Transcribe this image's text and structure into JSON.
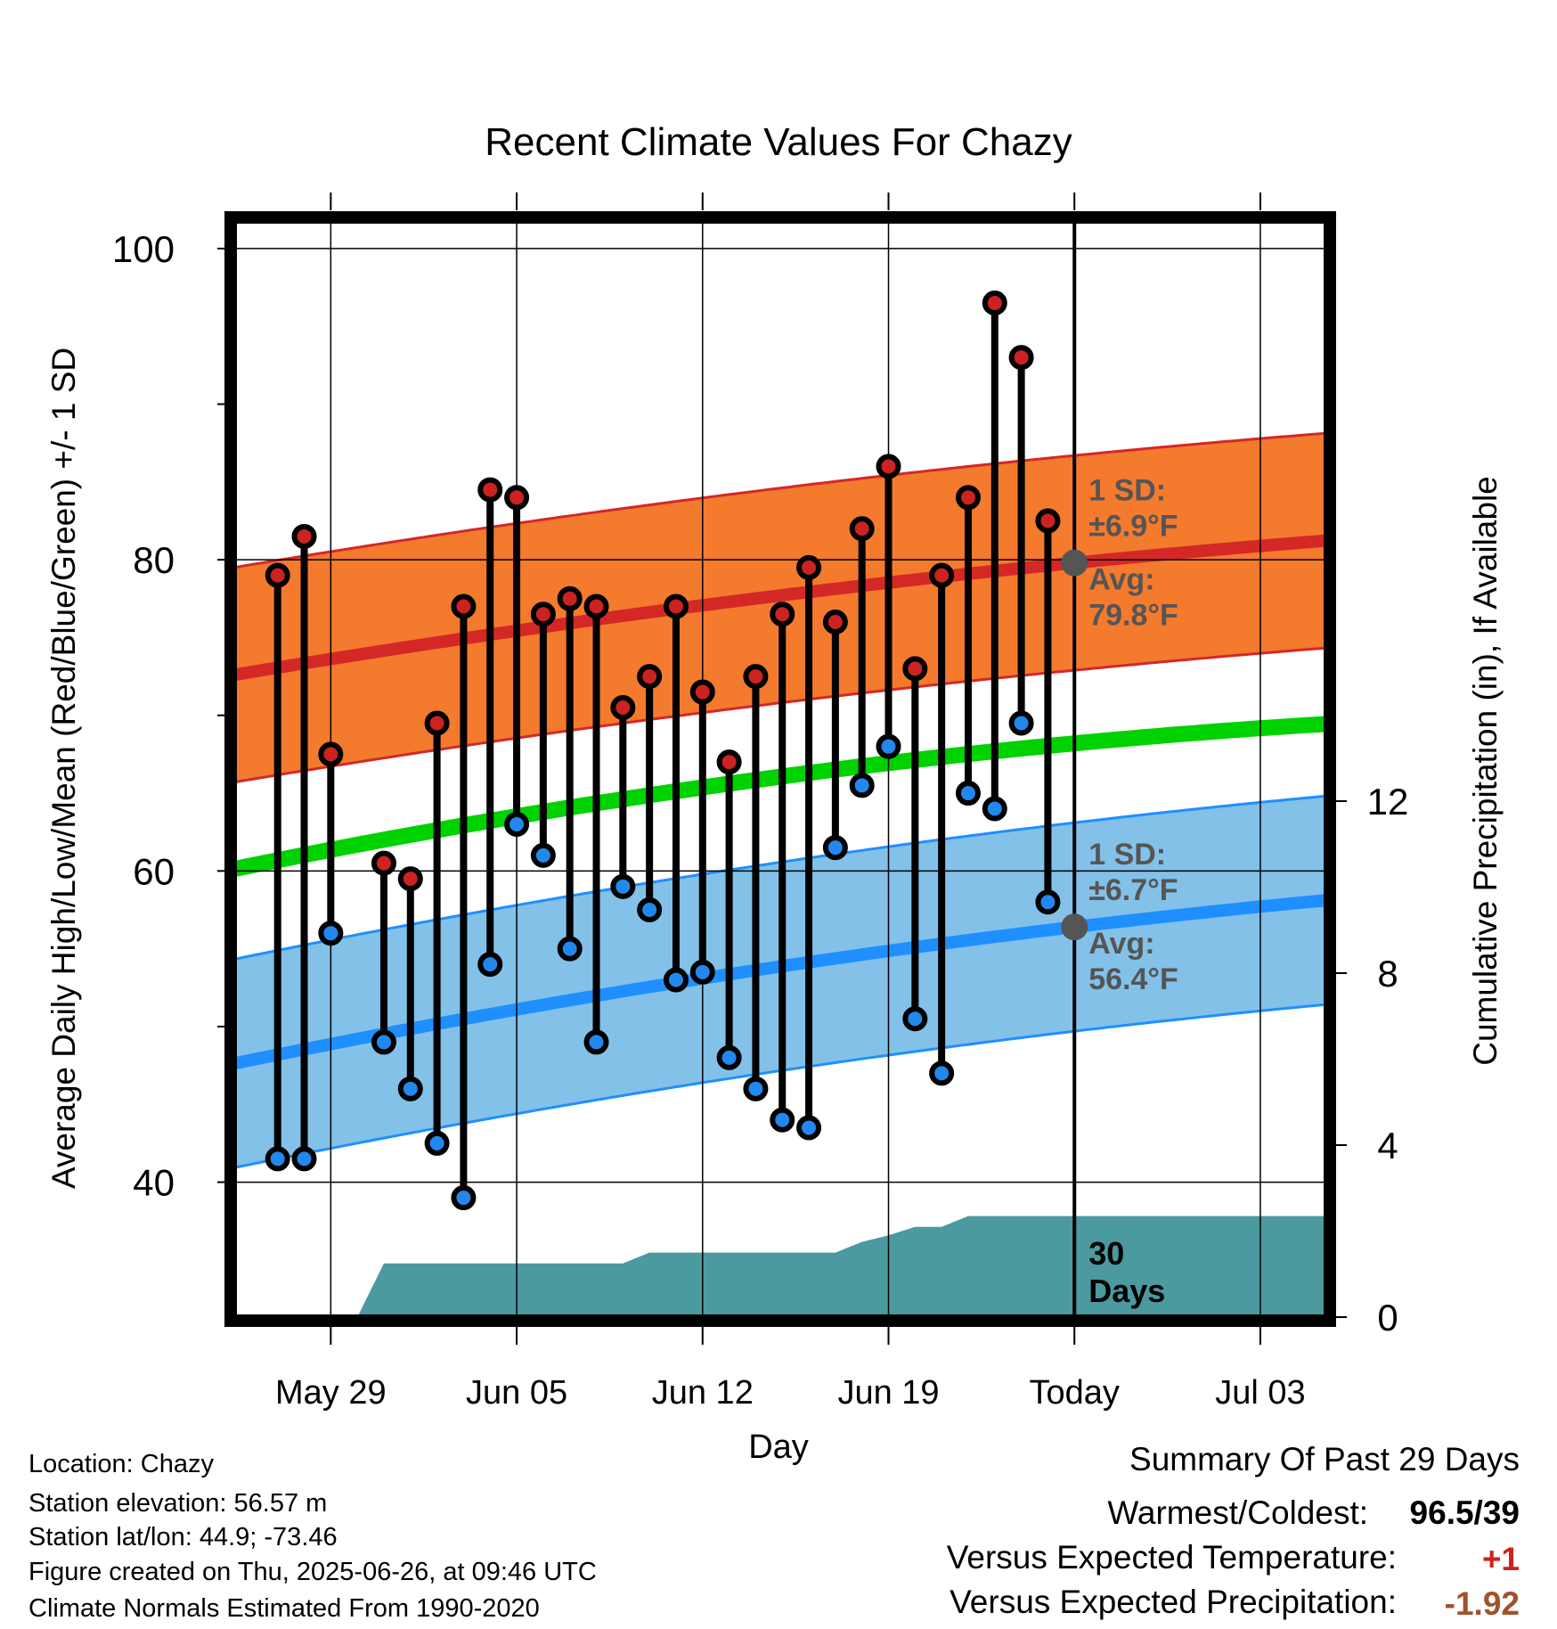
{
  "chart_data": {
    "type": "line",
    "title": "Recent Climate Values For Chazy",
    "xlabel": "Day",
    "ylabel_left": "Average Daily High/Low/Mean (Red/Blue/Green) +/- 1 SD",
    "ylabel_right": "Cumulative Precipitation (in), If Available",
    "ylim": [
      31.5,
      102
    ],
    "ylim_right": [
      0,
      25
    ],
    "y_ticks": [
      40,
      60,
      80,
      100
    ],
    "y_minor_ticks": [
      50,
      70,
      90
    ],
    "y_right_ticks": [
      0,
      4,
      8,
      12
    ],
    "x_range": [
      "2025-05-25",
      "2025-07-06"
    ],
    "x_ticks": [
      {
        "date": "2025-05-29",
        "label": "May 29"
      },
      {
        "date": "2025-06-05",
        "label": "Jun 05"
      },
      {
        "date": "2025-06-12",
        "label": "Jun 12"
      },
      {
        "date": "2025-06-19",
        "label": "Jun 19"
      },
      {
        "date": "2025-06-26",
        "label": "Today"
      },
      {
        "date": "2025-07-03",
        "label": "Jul 03"
      }
    ],
    "today": "2025-06-26",
    "observed": {
      "dates": [
        "2025-05-27",
        "2025-05-28",
        "2025-05-29",
        "2025-05-31",
        "2025-06-01",
        "2025-06-02",
        "2025-06-03",
        "2025-06-04",
        "2025-06-05",
        "2025-06-06",
        "2025-06-07",
        "2025-06-08",
        "2025-06-09",
        "2025-06-10",
        "2025-06-11",
        "2025-06-12",
        "2025-06-13",
        "2025-06-14",
        "2025-06-15",
        "2025-06-16",
        "2025-06-17",
        "2025-06-18",
        "2025-06-19",
        "2025-06-20",
        "2025-06-21",
        "2025-06-22",
        "2025-06-23",
        "2025-06-24",
        "2025-06-25"
      ],
      "highs": [
        79,
        81.5,
        67.5,
        60.5,
        59.5,
        69.5,
        77,
        84.5,
        84,
        76.5,
        77.5,
        77,
        70.5,
        72.5,
        77,
        71.5,
        67,
        72.5,
        76.5,
        79.5,
        76,
        82,
        86,
        73,
        79,
        84,
        96.5,
        93,
        82.5
      ],
      "lows": [
        41.5,
        41.5,
        56,
        49,
        46,
        42.5,
        39,
        54,
        63,
        61,
        55,
        49,
        59,
        57.5,
        53,
        53.5,
        48,
        46,
        44,
        43.5,
        61.5,
        65.5,
        68,
        50.5,
        47,
        65,
        64,
        69.5,
        58
      ]
    },
    "normals": {
      "dates": [
        "2025-05-25",
        "2025-06-26",
        "2025-07-06"
      ],
      "high_avg": [
        72.5,
        79.8,
        81.3
      ],
      "low_avg": [
        47.5,
        56.4,
        58.2
      ],
      "mean_avg": [
        60,
        68.2,
        69.5
      ],
      "high_sd": 6.9,
      "low_sd": 6.7
    },
    "precip": {
      "dates": [
        "2025-05-25",
        "2025-05-30",
        "2025-05-31",
        "2025-06-09",
        "2025-06-10",
        "2025-06-17",
        "2025-06-18",
        "2025-06-19",
        "2025-06-20",
        "2025-06-21",
        "2025-06-22",
        "2025-07-06"
      ],
      "cumulative": [
        0,
        0,
        1.25,
        1.25,
        1.5,
        1.5,
        1.75,
        1.9,
        2.1,
        2.1,
        2.35,
        2.35
      ]
    },
    "annotations": {
      "high_sd_label": "1 SD:",
      "high_sd_value": "±6.9°F",
      "high_avg_label": "Avg:",
      "high_avg_value": "79.8°F",
      "low_sd_label": "1 SD:",
      "low_sd_value": "±6.7°F",
      "low_avg_label": "Avg:",
      "low_avg_value": "56.4°F",
      "days_top": "30",
      "days_bottom": "Days"
    },
    "colors": {
      "high_band": "#f47a2e",
      "high_line": "#d42827",
      "low_band": "#83c1e8",
      "low_line": "#1f8fff",
      "mean_line": "#00d100",
      "precip": "#4a9aa0",
      "marker_high": "#cc2222",
      "marker_low": "#2288ee",
      "annotation": "#555555"
    }
  },
  "footer": {
    "location": "Location: Chazy",
    "elevation": "Station elevation: 56.57 m",
    "latlon": "Station lat/lon: 44.9; -73.46",
    "created": "Figure created on Thu, 2025-06-26, at 09:46 UTC",
    "normals": "Climate Normals Estimated From 1990-2020"
  },
  "summary": {
    "title": "Summary Of Past 29 Days",
    "warmest_label": "Warmest/Coldest:",
    "warmest_value": "96.5/39",
    "temp_label": "Versus Expected Temperature:",
    "temp_value": "+1",
    "temp_color": "#cc2222",
    "precip_label": "Versus Expected Precipitation:",
    "precip_value": "-1.92",
    "precip_color": "#a0522d"
  }
}
